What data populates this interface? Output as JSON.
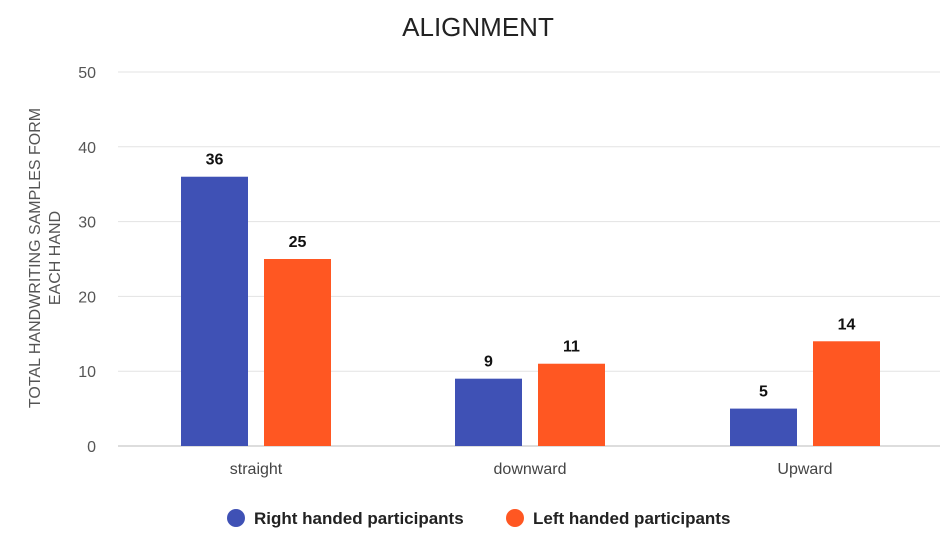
{
  "chart_data": {
    "type": "bar",
    "title": "ALIGNMENT",
    "ylabel_lines": [
      "TOTAL HANDWRITING SAMPLES FORM",
      "EACH HAND"
    ],
    "xlabel": "",
    "categories": [
      "straight",
      "downward",
      "Upward"
    ],
    "series": [
      {
        "name": "Right handed participants",
        "color": "#3F51B5",
        "values": [
          36,
          9,
          5
        ]
      },
      {
        "name": "Left handed participants",
        "color": "#FF5722",
        "values": [
          25,
          11,
          14
        ]
      }
    ],
    "ylim": [
      0,
      50
    ],
    "yticks": [
      0,
      10,
      20,
      30,
      40,
      50
    ],
    "grid": true,
    "legend": "bottom-center"
  }
}
